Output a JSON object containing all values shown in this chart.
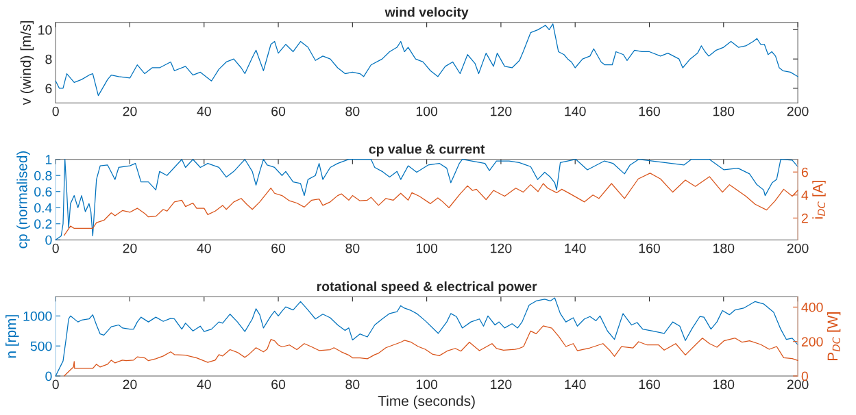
{
  "chart_data": [
    {
      "type": "line",
      "title": "wind velocity",
      "ylabel": "v (wind) [m/s]",
      "xlim": [
        0,
        200
      ],
      "xticks": [
        0,
        20,
        40,
        60,
        80,
        100,
        120,
        140,
        160,
        180,
        200
      ],
      "ylim": [
        5,
        10.5
      ],
      "yticks": [
        6,
        8,
        10
      ],
      "grid": false,
      "series": [
        {
          "color": "#0072bd",
          "x": [
            0,
            1,
            2,
            3,
            5,
            7,
            9,
            10,
            11.5,
            14,
            15,
            17,
            20,
            22,
            24,
            26,
            28,
            31,
            32,
            35,
            37,
            39,
            42,
            44,
            46,
            48,
            50,
            51,
            53,
            54,
            55,
            56,
            58,
            59,
            60,
            62,
            64,
            66,
            68,
            70,
            72,
            74,
            76,
            78,
            80,
            82,
            83,
            85,
            88,
            90,
            92,
            93,
            94,
            95,
            97,
            99,
            101,
            103,
            105,
            107,
            109,
            111,
            113,
            114,
            116,
            118,
            119,
            121,
            123,
            125,
            126,
            128,
            130,
            132,
            133,
            134,
            135.5,
            137,
            138,
            139,
            140,
            142,
            144,
            145,
            147,
            148,
            150,
            151,
            153,
            154,
            156,
            158,
            160,
            163,
            165,
            168,
            169,
            171,
            173,
            174,
            175,
            176,
            178,
            180,
            182,
            184,
            186,
            188,
            189,
            190,
            191,
            192,
            193,
            194,
            195,
            196,
            198,
            200
          ],
          "values": [
            6.5,
            6.0,
            6.0,
            7.0,
            6.4,
            6.6,
            6.9,
            7.0,
            5.5,
            6.6,
            6.9,
            6.8,
            6.7,
            7.6,
            7.0,
            7.4,
            7.4,
            7.8,
            7.2,
            7.5,
            6.9,
            7.1,
            6.5,
            7.3,
            7.8,
            8.0,
            7.4,
            7.0,
            8.1,
            8.6,
            7.9,
            7.2,
            9.0,
            9.2,
            8.4,
            9.0,
            8.5,
            9.2,
            8.8,
            7.9,
            8.2,
            8.0,
            7.4,
            7.0,
            7.1,
            7.0,
            6.8,
            7.6,
            8.0,
            8.5,
            8.8,
            9.2,
            8.5,
            8.8,
            8.0,
            7.8,
            7.2,
            6.8,
            7.5,
            7.8,
            7.0,
            8.3,
            7.7,
            7.0,
            8.4,
            7.5,
            8.4,
            7.5,
            7.4,
            7.9,
            8.5,
            9.8,
            10.0,
            10.3,
            10.0,
            10.4,
            8.5,
            8.3,
            8.0,
            7.8,
            7.4,
            8.0,
            8.2,
            8.7,
            7.8,
            7.6,
            7.6,
            8.5,
            8.3,
            7.9,
            8.6,
            8.5,
            8.5,
            8.2,
            8.4,
            8.0,
            7.4,
            8.0,
            8.4,
            8.9,
            8.5,
            8.2,
            8.6,
            8.8,
            9.2,
            8.8,
            8.9,
            9.2,
            9.4,
            9.0,
            9.0,
            8.3,
            8.5,
            8.2,
            7.4,
            7.2,
            7.1,
            6.8
          ]
        }
      ]
    },
    {
      "type": "line",
      "title": "cp value & current",
      "ylabel": "cp (normalised)",
      "y2label": "i$_{DC}$ [A]",
      "xlim": [
        0,
        200
      ],
      "xticks": [
        0,
        20,
        40,
        60,
        80,
        100,
        120,
        140,
        160,
        180,
        200
      ],
      "ylim": [
        0,
        1
      ],
      "yticks": [
        0,
        0.2,
        0.4,
        0.6,
        0.8,
        1
      ],
      "y2lim": [
        0.1,
        7.1
      ],
      "y2ticks": [
        2,
        4,
        6
      ],
      "grid": false,
      "series": [
        {
          "color": "#0072bd",
          "x": [
            0,
            1.5,
            2,
            2.5,
            3,
            3.5,
            4,
            5,
            6,
            7,
            8,
            9,
            9.5,
            10,
            10.5,
            11,
            12,
            14,
            16,
            17,
            20,
            21.5,
            23,
            25,
            27,
            28,
            30,
            32,
            34,
            35,
            37,
            39,
            41,
            44,
            46,
            48,
            50,
            51,
            53,
            54,
            55,
            56,
            57,
            59,
            61,
            62,
            64,
            66,
            67,
            68,
            70,
            71,
            72,
            74,
            76,
            79,
            82,
            85,
            86,
            88,
            90,
            92,
            93,
            95,
            97.3,
            100.4,
            103.4,
            105.4,
            106.5,
            108.8,
            109.6,
            115.7,
            116.9,
            118.8,
            122.2,
            124.9,
            128,
            129.9,
            131.8,
            133.3,
            134.5,
            135,
            136,
            140.2,
            143.3,
            147.9,
            150.2,
            153.3,
            154.8,
            157.1,
            169.3,
            171.3,
            176.2,
            180.1,
            183.9,
            187,
            188.9,
            190.8,
            191.2,
            193.1,
            194.3,
            195.4,
            198.5,
            200
          ],
          "values": [
            0,
            0.05,
            0.2,
            1.0,
            0.6,
            0.15,
            0.45,
            0.55,
            0.4,
            0.55,
            0.35,
            0.45,
            0.35,
            0.05,
            0.4,
            0.75,
            0.92,
            0.93,
            0.75,
            0.9,
            0.92,
            0.95,
            0.72,
            0.72,
            0.62,
            0.85,
            0.8,
            0.9,
            1.0,
            0.9,
            1.0,
            0.9,
            0.95,
            0.9,
            0.78,
            0.85,
            0.95,
            1.0,
            0.85,
            0.68,
            0.85,
            1.0,
            0.93,
            0.9,
            0.8,
            0.85,
            0.72,
            0.7,
            0.55,
            0.75,
            0.8,
            0.95,
            0.75,
            0.9,
            0.95,
            1.0,
            1.0,
            1.0,
            0.9,
            0.85,
            0.78,
            0.85,
            0.75,
            0.92,
            0.84,
            0.93,
            0.95,
            0.89,
            0.71,
            0.95,
            1.0,
            0.95,
            0.86,
            0.98,
            0.98,
            0.96,
            0.91,
            0.75,
            0.84,
            0.78,
            0.71,
            0.62,
            0.96,
            1.0,
            0.87,
            0.98,
            0.95,
            0.82,
            0.93,
            1.0,
            0.93,
            1.0,
            1.0,
            0.87,
            0.89,
            0.82,
            0.69,
            0.62,
            0.55,
            0.71,
            0.75,
            1.0,
            0.99,
            0.91
          ]
        },
        {
          "color": "#d95319",
          "axis": "y2",
          "x": [
            2.3,
            4,
            5,
            10,
            11,
            13,
            15,
            16,
            18,
            20,
            22,
            24,
            25,
            27,
            29,
            30,
            32,
            34,
            35,
            37,
            38,
            40,
            41,
            43,
            45,
            46,
            48,
            50,
            51.5,
            53,
            55,
            57,
            58,
            59,
            61,
            63,
            65,
            67,
            69,
            71,
            72,
            74,
            76,
            77,
            79,
            80,
            82,
            84,
            85,
            87,
            89,
            91,
            93,
            95,
            96,
            98,
            101,
            103,
            104,
            106,
            109,
            111,
            112.3,
            113.4,
            116,
            118,
            121,
            124,
            126,
            128,
            130,
            131.4,
            132.6,
            135,
            136.4,
            138.7,
            142.5,
            144.8,
            146.4,
            149.8,
            153.3,
            157,
            160.2,
            163,
            166.3,
            169.7,
            172.4,
            176.2,
            179.7,
            181.6,
            186,
            188.5,
            191.6,
            193.9,
            196.2,
            198.5,
            200
          ],
          "values": [
            0.5,
            1.3,
            1.1,
            1.1,
            1.6,
            1.8,
            2.45,
            2.2,
            2.65,
            2.5,
            2.85,
            2.4,
            2.1,
            2.15,
            2.75,
            2.6,
            3.4,
            3.55,
            3.0,
            3.3,
            2.85,
            2.85,
            2.3,
            2.6,
            3.1,
            2.75,
            3.4,
            3.7,
            3.2,
            2.75,
            3.4,
            4.2,
            4.6,
            4.15,
            3.95,
            3.5,
            3.3,
            2.95,
            3.55,
            3.65,
            3.1,
            3.4,
            3.95,
            4.1,
            3.55,
            3.95,
            3.5,
            3.55,
            3.8,
            3.1,
            3.7,
            3.55,
            4.15,
            3.55,
            4.2,
            3.9,
            3.25,
            3.75,
            3.5,
            2.9,
            4.1,
            4.8,
            4.4,
            4.5,
            3.6,
            4.4,
            3.9,
            4.6,
            4.25,
            4.9,
            4.3,
            5.0,
            4.6,
            4.2,
            4.5,
            4.1,
            3.4,
            4.0,
            3.7,
            5.0,
            3.7,
            5.4,
            5.9,
            5.4,
            4.25,
            5.3,
            4.75,
            5.6,
            4.25,
            4.9,
            3.9,
            3.2,
            2.7,
            3.5,
            4.5,
            3.9,
            4.4
          ]
        }
      ]
    },
    {
      "type": "line",
      "title": "rotational speed & electrical power",
      "xlabel": "Time (seconds)",
      "ylabel": "n [rpm]",
      "y2label": "P$_{DC}$ [W]",
      "xlim": [
        0,
        200
      ],
      "xticks": [
        0,
        20,
        40,
        60,
        80,
        100,
        120,
        140,
        160,
        180,
        200
      ],
      "ylim": [
        0,
        1320
      ],
      "yticks": [
        0,
        500,
        1000
      ],
      "y2lim": [
        0,
        460
      ],
      "y2ticks": [
        0,
        200,
        400
      ],
      "grid": false,
      "series": [
        {
          "color": "#0072bd",
          "x": [
            0,
            2,
            3,
            3.5,
            4,
            6,
            7,
            9,
            10,
            11,
            12,
            13,
            15,
            17,
            18,
            20,
            21,
            22,
            23,
            25,
            27,
            29,
            31,
            32,
            34,
            35,
            37,
            39,
            40,
            42,
            44,
            45,
            47,
            49,
            51,
            53,
            54,
            55,
            56,
            58,
            59,
            60,
            61,
            62,
            64,
            66,
            68,
            70,
            72,
            74,
            76,
            78,
            79,
            80,
            82,
            84,
            86,
            88,
            90,
            92,
            93,
            94,
            95.8,
            97.3,
            99.6,
            103.1,
            105.4,
            106.5,
            108,
            109.6,
            111.9,
            114.2,
            115.3,
            116.5,
            118.4,
            119.5,
            121,
            123,
            124.5,
            125.7,
            127.6,
            129.5,
            131.8,
            133.3,
            134.5,
            136,
            137.5,
            139.5,
            140.6,
            142.5,
            144,
            145.6,
            146.7,
            148.7,
            150.6,
            152.9,
            155.2,
            156.7,
            158.2,
            160.9,
            164,
            166.3,
            168.2,
            169.7,
            171.6,
            173.6,
            174.7,
            176.6,
            178.2,
            179.7,
            181.6,
            183.1,
            185.4,
            188.5,
            190.8,
            193.5,
            195.4,
            196.9,
            198.5,
            200
          ],
          "values": [
            0,
            250,
            700,
            950,
            1000,
            900,
            930,
            950,
            1020,
            850,
            700,
            680,
            820,
            850,
            800,
            780,
            780,
            900,
            980,
            900,
            980,
            910,
            960,
            950,
            780,
            880,
            750,
            830,
            740,
            780,
            900,
            880,
            1030,
            900,
            740,
            950,
            1120,
            1020,
            800,
            1000,
            1080,
            1000,
            1080,
            1150,
            1100,
            1240,
            1100,
            950,
            1030,
            970,
            850,
            760,
            800,
            600,
            700,
            650,
            850,
            950,
            1040,
            1070,
            1170,
            1130,
            1090,
            1040,
            920,
            710,
            900,
            1040,
            990,
            800,
            900,
            950,
            830,
            1000,
            850,
            900,
            800,
            870,
            800,
            900,
            1180,
            1250,
            1280,
            1250,
            1300,
            1040,
            900,
            970,
            830,
            950,
            990,
            920,
            1000,
            750,
            610,
            1040,
            850,
            890,
            780,
            750,
            710,
            900,
            830,
            590,
            800,
            990,
            980,
            780,
            900,
            1090,
            1020,
            1100,
            1130,
            1240,
            1200,
            1060,
            780,
            610,
            630,
            520
          ]
        },
        {
          "color": "#d95319",
          "axis": "y2",
          "x": [
            2.3,
            4,
            4.8,
            5,
            5.1,
            10,
            11,
            12,
            14,
            15,
            16,
            18,
            19,
            21,
            22,
            24,
            25,
            27,
            29,
            31,
            32,
            35,
            38,
            41,
            43,
            44,
            45,
            47,
            49,
            51,
            52,
            54,
            56,
            57,
            58,
            59,
            60,
            61,
            63,
            65,
            67,
            69,
            71,
            74,
            75,
            77,
            79,
            80,
            82,
            84,
            86,
            87,
            89,
            91,
            93,
            94,
            95.8,
            97.7,
            99.6,
            101.5,
            103.4,
            105.7,
            107.7,
            109.2,
            111.5,
            114.2,
            117.6,
            118.8,
            120.7,
            123.8,
            124.9,
            126.1,
            128,
            129.5,
            131.4,
            133.7,
            135.6,
            137.5,
            139.5,
            140.6,
            144,
            147.5,
            149.4,
            150.6,
            152.5,
            155.6,
            157.1,
            159.4,
            162.5,
            164,
            167.1,
            169.7,
            172.4,
            174.3,
            176.2,
            178.2,
            180.1,
            183.1,
            185,
            187,
            190,
            192.3,
            194.3,
            196.2,
            198.5,
            200
          ],
          "values": [
            0,
            36,
            52,
            84,
            44,
            44,
            68,
            52,
            68,
            92,
            76,
            92,
            89,
            92,
            111,
            105,
            89,
            100,
            116,
            140,
            124,
            121,
            105,
            79,
            92,
            124,
            116,
            153,
            137,
            108,
            124,
            164,
            140,
            156,
            212,
            204,
            180,
            169,
            180,
            153,
            188,
            169,
            148,
            153,
            164,
            140,
            121,
            105,
            105,
            100,
            124,
            132,
            164,
            180,
            196,
            207,
            196,
            171,
            155,
            127,
            118,
            147,
            160,
            144,
            196,
            147,
            188,
            160,
            150,
            155,
            160,
            171,
            261,
            245,
            291,
            278,
            229,
            171,
            188,
            147,
            163,
            188,
            147,
            114,
            171,
            163,
            199,
            180,
            180,
            150,
            188,
            122,
            180,
            220,
            188,
            167,
            204,
            220,
            196,
            204,
            183,
            155,
            171,
            106,
            101,
            90
          ]
        }
      ]
    }
  ]
}
